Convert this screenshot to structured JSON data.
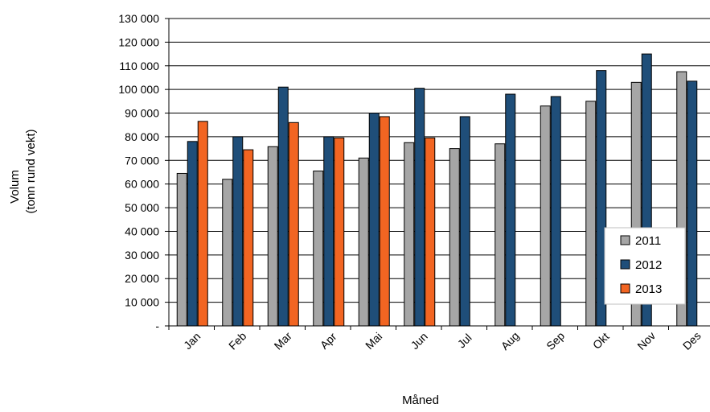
{
  "chart_data": {
    "type": "bar",
    "title": "",
    "xlabel": "Måned",
    "ylabel_lines": [
      "Volum",
      "(tonn rund vekt)"
    ],
    "categories": [
      "Jan",
      "Feb",
      "Mar",
      "Apr",
      "Mai",
      "Jun",
      "Jul",
      "Aug",
      "Sep",
      "Okt",
      "Nov",
      "Des"
    ],
    "series": [
      {
        "name": "2011",
        "color": "#a6a6a6",
        "values": [
          64500,
          62000,
          75800,
          65500,
          71000,
          77500,
          75000,
          77000,
          93000,
          95000,
          103000,
          107500
        ]
      },
      {
        "name": "2012",
        "color": "#1f4e79",
        "values": [
          78000,
          80000,
          101000,
          80000,
          90000,
          100500,
          88500,
          98000,
          97000,
          108000,
          115000,
          103500
        ]
      },
      {
        "name": "2013",
        "color": "#f26522",
        "values": [
          86500,
          74500,
          86000,
          79500,
          88500,
          79500,
          null,
          null,
          null,
          null,
          null,
          null
        ]
      }
    ],
    "ylim": [
      0,
      130000
    ],
    "yticks": [
      0,
      10000,
      20000,
      30000,
      40000,
      50000,
      60000,
      70000,
      80000,
      90000,
      100000,
      110000,
      120000,
      130000
    ],
    "ytick_labels": [
      "-",
      "10 000",
      "20 000",
      "30 000",
      "40 000",
      "50 000",
      "60 000",
      "70 000",
      "80 000",
      "90 000",
      "100 000",
      "110 000",
      "120 000",
      "130 000"
    ],
    "grid": "horizontal",
    "legend_position": "bottom-right, inside plot"
  }
}
